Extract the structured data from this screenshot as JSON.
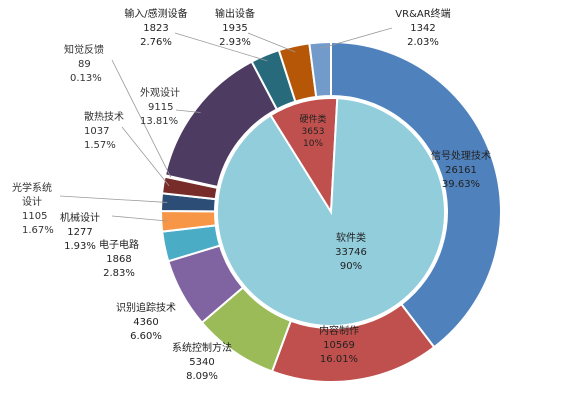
{
  "chart_data": {
    "type": "pie",
    "style": "nested donut (sunburst)",
    "inner_ring": [
      {
        "name": "硬件类",
        "value": 3653,
        "percent": "10%",
        "color": "#c0504d"
      },
      {
        "name": "软件类",
        "value": 33746,
        "percent": "90%",
        "color": "#92cddc"
      }
    ],
    "outer_ring": [
      {
        "name": "信号处理技术",
        "value": 26161,
        "percent": "39.63%",
        "color": "#4f81bd"
      },
      {
        "name": "内容制作",
        "value": 10569,
        "percent": "16.01%",
        "color": "#c0504d"
      },
      {
        "name": "系统控制方法",
        "value": 5340,
        "percent": "8.09%",
        "color": "#9bbb59"
      },
      {
        "name": "识别追踪技术",
        "value": 4360,
        "percent": "6.60%",
        "color": "#8064a2"
      },
      {
        "name": "电子电路",
        "value": 1868,
        "percent": "2.83%",
        "color": "#4bacc6"
      },
      {
        "name": "机械设计",
        "value": 1277,
        "percent": "1.93%",
        "color": "#f79646"
      },
      {
        "name": "光学系统设计",
        "name_lines": [
          "光学系统",
          "设计"
        ],
        "value": 1105,
        "percent": "1.67%",
        "color": "#2c4d75"
      },
      {
        "name": "散热技术",
        "value": 1037,
        "percent": "1.57%",
        "color": "#772c2a"
      },
      {
        "name": "知觉反馈",
        "value": 89,
        "percent": "0.13%",
        "color": "#5f7530"
      },
      {
        "name": "外观设计",
        "value": 9115,
        "percent": "13.81%",
        "color": "#4d3b62"
      },
      {
        "name": "输入/感测设备",
        "value": 1823,
        "percent": "2.76%",
        "color": "#276a7c"
      },
      {
        "name": "输出设备",
        "value": 1935,
        "percent": "2.93%",
        "color": "#b65708"
      },
      {
        "name": "VR&AR终端",
        "value": 1342,
        "percent": "2.03%",
        "color": "#729aca"
      }
    ]
  }
}
